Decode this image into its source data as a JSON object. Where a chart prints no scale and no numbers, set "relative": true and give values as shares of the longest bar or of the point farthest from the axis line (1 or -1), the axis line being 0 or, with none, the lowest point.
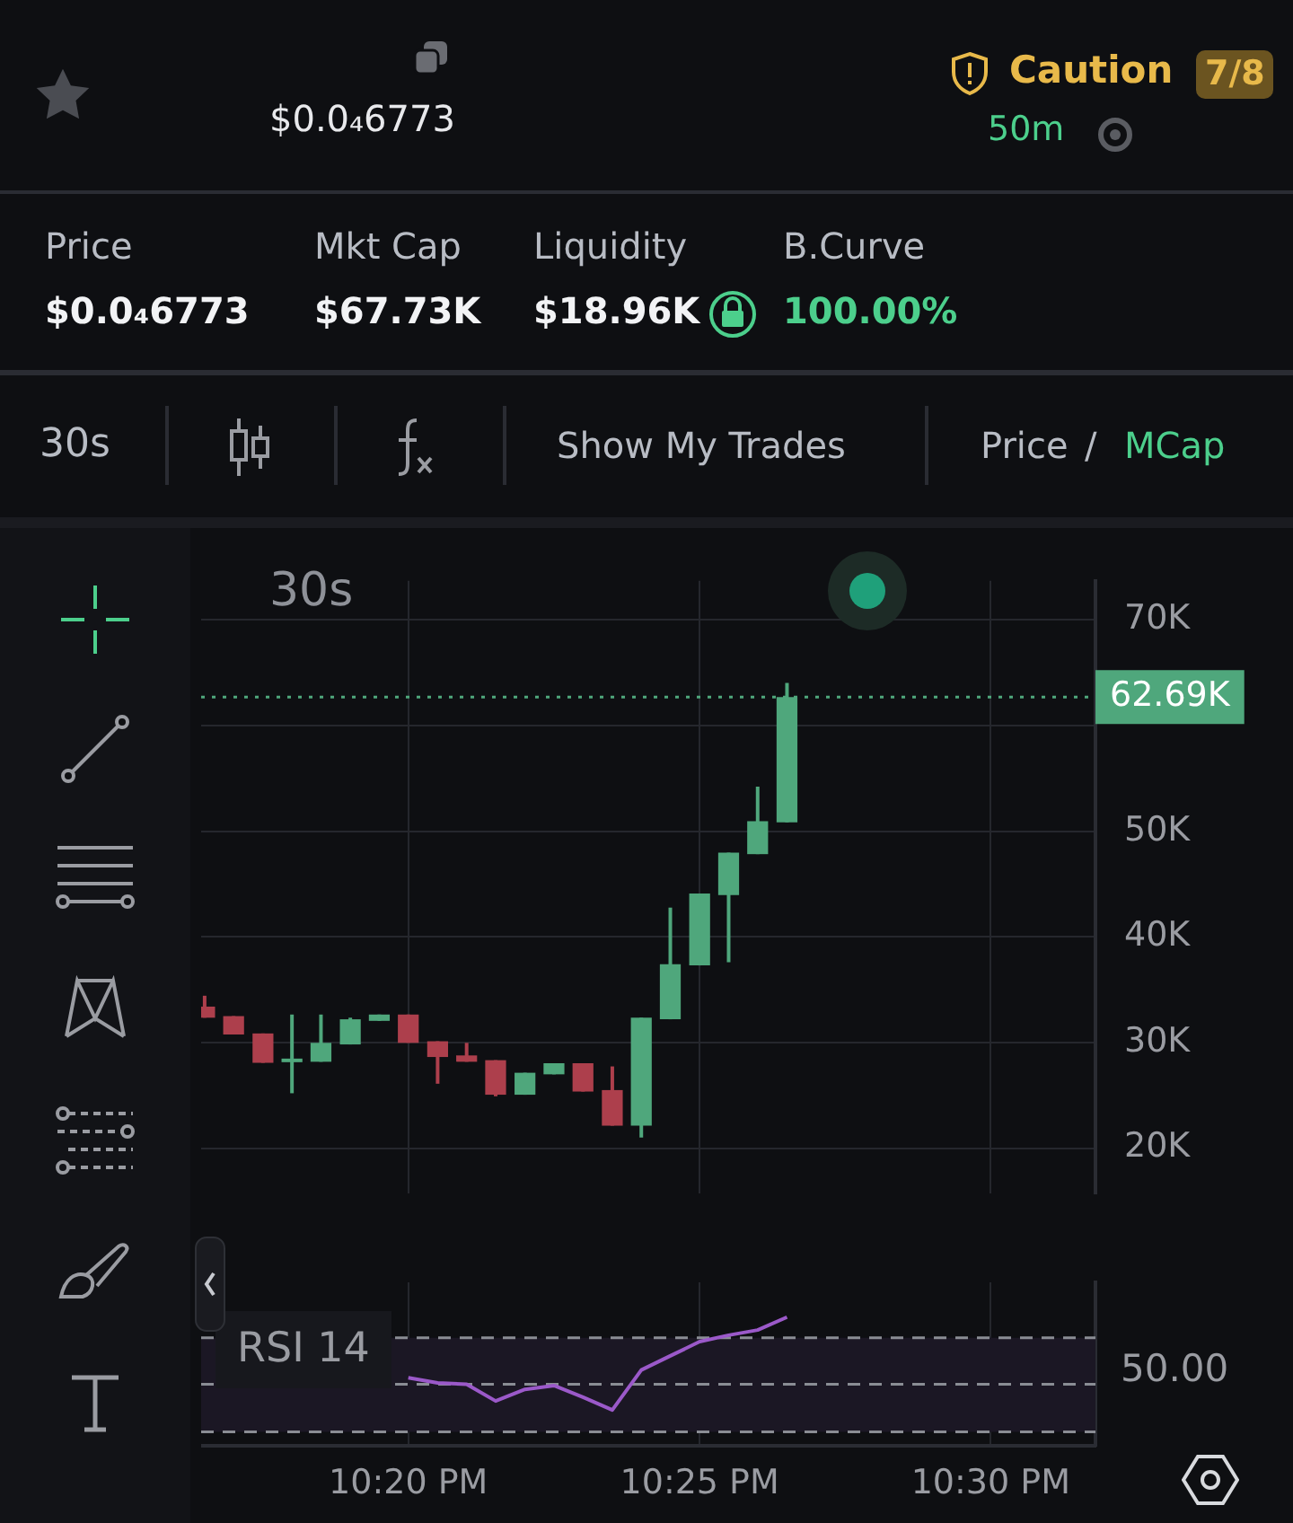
{
  "chart_data": [
    {
      "type": "other",
      "annotations": [
        "$0.0₄6773",
        "Caution",
        "7/8",
        "50m",
        "Price",
        "Mkt Cap",
        "Liquidity",
        "B.Curve",
        "$0.0₄6773",
        "$67.73K",
        "$18.96K",
        "100.00%",
        "30s",
        "Show My Trades",
        "Price",
        "/",
        "MCap"
      ]
    },
    {
      "type": "candlestick",
      "title": "30s",
      "x": [
        22.275,
        22.2833,
        22.2917,
        22.3,
        22.3083,
        22.3167,
        22.325,
        22.3333,
        22.3417,
        22.35,
        22.3583,
        22.3667,
        22.375,
        22.3833,
        22.3917,
        22.4,
        22.4083,
        22.4167,
        22.425,
        22.4333,
        22.4417
      ],
      "ohlc": [
        [
          33400,
          34430,
          32350,
          32350
        ],
        [
          32500,
          32500,
          30760,
          30760
        ],
        [
          30860,
          30860,
          28080,
          28080
        ],
        [
          28400,
          32650,
          25200,
          28480
        ],
        [
          28180,
          32650,
          28180,
          29970
        ],
        [
          29820,
          32350,
          29820,
          32200
        ],
        [
          32050,
          32650,
          32050,
          32650
        ],
        [
          32650,
          32650,
          29970,
          29970
        ],
        [
          30120,
          30120,
          26100,
          28630
        ],
        [
          28780,
          29970,
          28180,
          28180
        ],
        [
          28330,
          28330,
          24910,
          25060
        ],
        [
          25060,
          27140,
          25060,
          27140
        ],
        [
          26990,
          28040,
          26990,
          28040
        ],
        [
          28040,
          28040,
          25360,
          25360
        ],
        [
          25500,
          27740,
          22130,
          22130
        ],
        [
          22130,
          32350,
          21000,
          32350
        ],
        [
          32200,
          42770,
          32200,
          37410
        ],
        [
          37300,
          44100,
          37300,
          44100
        ],
        [
          43960,
          47970,
          37600,
          47970
        ],
        [
          47830,
          54220,
          47830,
          50950
        ],
        [
          50850,
          64040,
          50850,
          62690
        ]
      ],
      "colors": [
        "#ad3f4c",
        "#ad3f4c",
        "#ad3f4c",
        "#4fa77c",
        "#4fa77c",
        "#4fa77c",
        "#4fa77c",
        "#ad3f4c",
        "#ad3f4c",
        "#ad3f4c",
        "#ad3f4c",
        "#4fa77c",
        "#4fa77c",
        "#ad3f4c",
        "#ad3f4c",
        "#4fa77c",
        "#4fa77c",
        "#4fa77c",
        "#4fa77c",
        "#4fa77c",
        "#4fa77c"
      ],
      "xlim": [
        22.274,
        22.53
      ],
      "xticks": [
        {
          "value": 22.3333,
          "label": null
        },
        {
          "value": 22.4167,
          "label": null
        },
        {
          "value": 22.5,
          "label": null
        }
      ],
      "ylim": [
        15700,
        73700
      ],
      "yticks": [
        {
          "value": 20000,
          "label": "20K"
        },
        {
          "value": 30000,
          "label": "30K"
        },
        {
          "value": 40000,
          "label": "40K"
        },
        {
          "value": 50000,
          "label": "50K"
        },
        {
          "value": 60000,
          "label": null
        },
        {
          "value": 70000,
          "label": "70K"
        }
      ],
      "ref_lines": [
        {
          "axis": "y",
          "value": 62690,
          "label": "62.69K",
          "color": "#4fa77c",
          "line_style": "dotted"
        }
      ],
      "grid": true,
      "tick_labels": "y",
      "legend": false
    },
    {
      "type": "line",
      "title": "RSI 14",
      "relative": true,
      "x": [
        22.3333,
        22.3417,
        22.35,
        22.3583,
        22.3667,
        22.375,
        22.3833,
        22.3917,
        22.4,
        22.4083,
        22.4167,
        22.425,
        22.4333,
        22.4417
      ],
      "series": [
        {
          "color": "#9b59c9",
          "values": [
            0.53,
            0.49,
            0.48,
            0.35,
            0.44,
            0.47,
            0.38,
            0.28,
            0.59,
            0.7,
            0.81,
            0.86,
            0.9,
            1
          ]
        }
      ],
      "xlim": [
        22.274,
        22.53
      ],
      "xticks": [
        {
          "value": 22.3333,
          "label": "10:20 PM"
        },
        {
          "value": 22.4167,
          "label": "10:25 PM"
        },
        {
          "value": 22.5,
          "label": "10:30 PM"
        }
      ],
      "bands": [
        {
          "axis": "y",
          "from": 0.11,
          "to": 0.84,
          "color": "#1b1724"
        }
      ],
      "ref_lines": [
        {
          "axis": "y",
          "value": 0.84,
          "color": "#8a8d94",
          "line_style": "dashed"
        },
        {
          "axis": "y",
          "value": 0.48,
          "color": "#8a8d94",
          "line_style": "dashed"
        },
        {
          "axis": "y",
          "value": 0.11,
          "color": "#8a8d94",
          "line_style": "dashed"
        }
      ],
      "annotations": [
        "50.00"
      ],
      "grid": "x",
      "tick_labels": "x",
      "legend": false,
      "marker": "none"
    }
  ]
}
